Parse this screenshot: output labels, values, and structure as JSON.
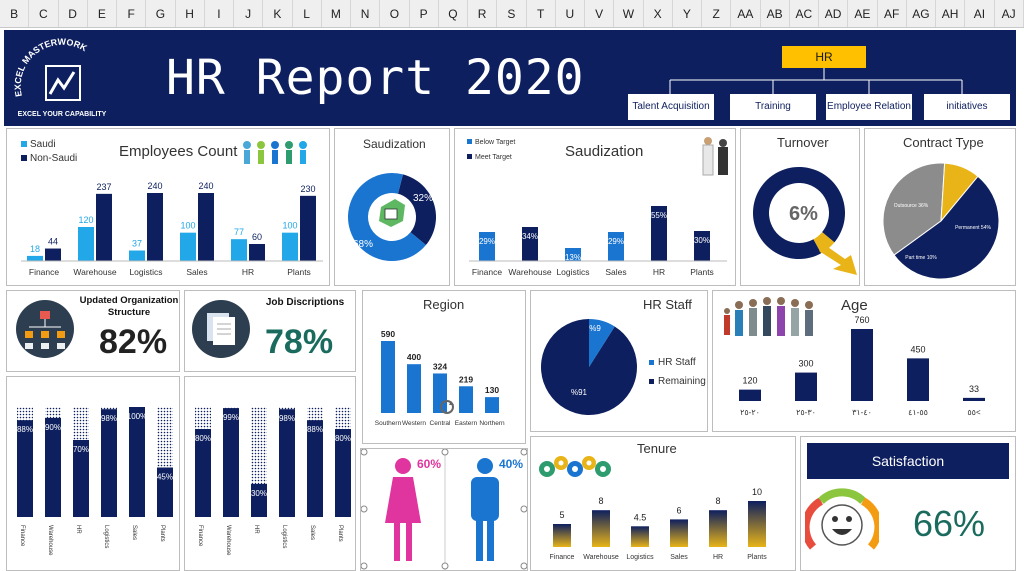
{
  "columns": [
    "B",
    "C",
    "D",
    "E",
    "F",
    "G",
    "H",
    "I",
    "J",
    "K",
    "L",
    "M",
    "N",
    "O",
    "P",
    "Q",
    "R",
    "S",
    "T",
    "U",
    "V",
    "W",
    "X",
    "Y",
    "Z",
    "AA",
    "AB",
    "AC",
    "AD",
    "AE",
    "AF",
    "AG",
    "AH",
    "AI",
    "AJ"
  ],
  "header": {
    "title": "HR Report 2020",
    "logo_top": "EXCEL MASTERWORK",
    "logo_bottom": "EXCEL YOUR CAPABILITY",
    "org_root": "HR",
    "departments": [
      "Talent Acquisition",
      "Training",
      "Employee Relation",
      "initiatives"
    ]
  },
  "colors": {
    "navy": "#0d1f5e",
    "blue": "#1a75d1",
    "light_blue": "#22a7e8",
    "gold": "#e8b418",
    "gray": "#8c8c8c",
    "green": "#2e9c6f",
    "pink": "#e0349e"
  },
  "employees": {
    "title": "Employees Count",
    "legend": [
      "Saudi",
      "Non-Saudi"
    ]
  },
  "saudization_donut": {
    "title": "Saudization",
    "labels": [
      "32%",
      "68%"
    ]
  },
  "saudization_bars": {
    "title": "Saudization",
    "legend": [
      "Below Target",
      "Meet Target"
    ]
  },
  "turnover": {
    "title": "Turnover",
    "value": "6%"
  },
  "contract": {
    "title": "Contract Type",
    "labels": [
      "Outsource 36%",
      "Part time 10%",
      "Permanent 54%"
    ]
  },
  "org_structure": {
    "title_a": "Updated Organization",
    "title_b": "Structure",
    "value": "82%"
  },
  "job_desc": {
    "title": "Job Discriptions",
    "value": "78%"
  },
  "region": {
    "title": "Region"
  },
  "hr_staff": {
    "title": "HR Staff",
    "legend": [
      "HR Staff",
      "Remaining"
    ],
    "labels": [
      "%9",
      "%91"
    ]
  },
  "age": {
    "title": "Age"
  },
  "gender": {
    "female": "60%",
    "male": "40%"
  },
  "tenure": {
    "title": "Tenure"
  },
  "satisfaction": {
    "title": "Satisfaction",
    "value": "66%"
  },
  "chart_data": [
    {
      "type": "bar",
      "title": "Employees Count",
      "categories": [
        "Finance",
        "Warehouse",
        "Logistics",
        "Sales",
        "HR",
        "Plants"
      ],
      "series": [
        {
          "name": "Saudi",
          "values": [
            18,
            120,
            37,
            100,
            77,
            100
          ]
        },
        {
          "name": "Non-Saudi",
          "values": [
            44,
            237,
            240,
            240,
            60,
            230
          ]
        }
      ]
    },
    {
      "type": "pie",
      "title": "Saudization",
      "categories": [
        "Saudi",
        "Non-Saudi"
      ],
      "values": [
        68,
        32
      ]
    },
    {
      "type": "bar",
      "title": "Saudization",
      "categories": [
        "Finance",
        "Warehouse",
        "Logistics",
        "Sales",
        "HR",
        "Plants"
      ],
      "values": [
        29,
        34,
        13,
        29,
        55,
        30
      ],
      "value_labels": [
        "29%",
        "34%",
        "13%",
        "29%",
        "55%",
        "30%"
      ],
      "series": [
        {
          "name": "Below Target"
        },
        {
          "name": "Meet Target"
        }
      ]
    },
    {
      "type": "pie",
      "title": "Turnover",
      "values": [
        6,
        94
      ]
    },
    {
      "type": "pie",
      "title": "Contract Type",
      "categories": [
        "Outsource",
        "Part time",
        "Permanent"
      ],
      "values": [
        36,
        10,
        54
      ]
    },
    {
      "type": "bar",
      "title": "",
      "categories": [
        "Finance",
        "Warehouse",
        "HR",
        "Logistics",
        "Sales",
        "Plants"
      ],
      "values": [
        88,
        90,
        70,
        98,
        100,
        45
      ]
    },
    {
      "type": "bar",
      "title": "",
      "categories": [
        "Finance",
        "Warehouse",
        "HR",
        "Logistics",
        "Sales",
        "Plants"
      ],
      "values": [
        80,
        99,
        30,
        98,
        88,
        80
      ]
    },
    {
      "type": "bar",
      "title": "Region",
      "categories": [
        "Southern",
        "Western",
        "Central",
        "Eastern",
        "Northern"
      ],
      "values": [
        590,
        400,
        324,
        219,
        130
      ]
    },
    {
      "type": "pie",
      "title": "HR Staff",
      "categories": [
        "HR Staff",
        "Remaining"
      ],
      "values": [
        9,
        91
      ]
    },
    {
      "type": "bar",
      "title": "Age",
      "categories": [
        "٢٠-٢٥",
        "٣٠-٢٥",
        "٤٠-٣١",
        "٥٥-٤١",
        "٥٥<"
      ],
      "values": [
        120,
        300,
        760,
        450,
        33
      ]
    },
    {
      "type": "bar",
      "title": "Tenure",
      "categories": [
        "Finance",
        "Warehouse",
        "Logistics",
        "Sales",
        "HR",
        "Plants"
      ],
      "values": [
        5,
        8,
        4.5,
        6,
        8,
        10
      ]
    }
  ]
}
